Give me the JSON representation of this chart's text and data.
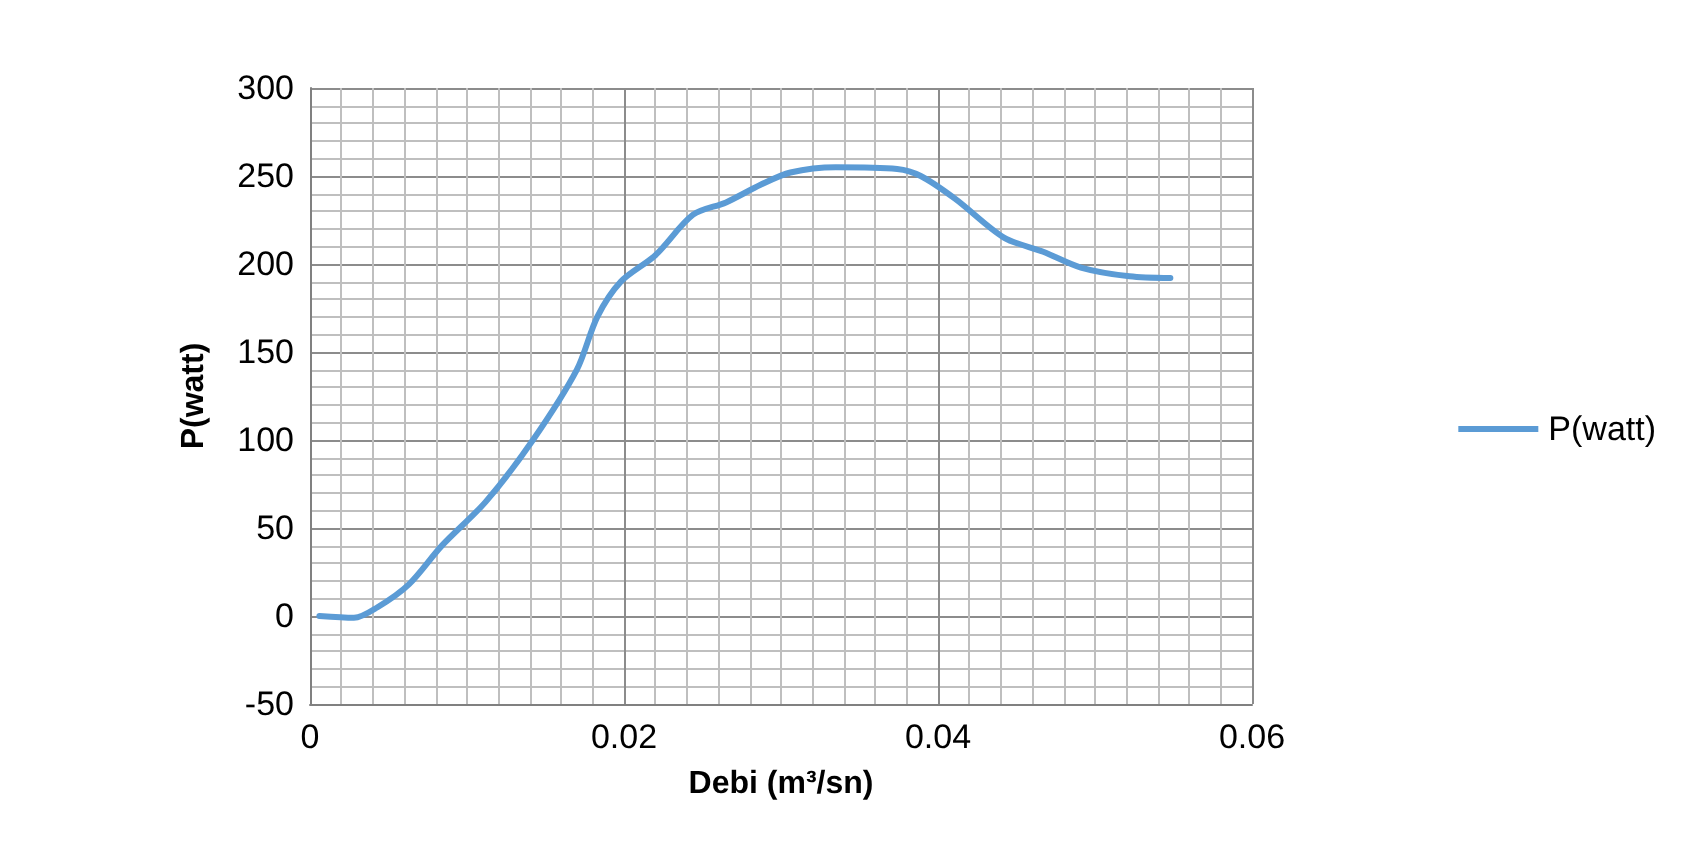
{
  "chart_data": {
    "type": "line",
    "xlabel": "Debi (m³/sn)",
    "ylabel": "P(watt)",
    "x": [
      0.0006,
      0.0028,
      0.0043,
      0.0063,
      0.0084,
      0.0112,
      0.0142,
      0.017,
      0.0183,
      0.0198,
      0.022,
      0.0244,
      0.0265,
      0.0287,
      0.0306,
      0.0335,
      0.0374,
      0.0389,
      0.0411,
      0.0442,
      0.0467,
      0.0491,
      0.0522,
      0.0548
    ],
    "series": [
      {
        "name": "P(watt)",
        "color": "#5b9bd5",
        "values": [
          0,
          -1,
          5,
          18,
          40,
          65,
          100,
          140,
          170,
          190,
          205,
          228,
          235,
          245,
          252,
          255,
          254,
          250,
          237,
          215,
          207,
          198,
          193,
          192
        ]
      }
    ],
    "xlim": [
      0,
      0.06
    ],
    "xticks": [
      0,
      0.02,
      0.04,
      0.06
    ],
    "ylim": [
      -50,
      300
    ],
    "yticks": [
      -50,
      0,
      50,
      100,
      150,
      200,
      250,
      300
    ],
    "grid": true,
    "legend": "right",
    "marker": "none",
    "line_style": "solid"
  }
}
